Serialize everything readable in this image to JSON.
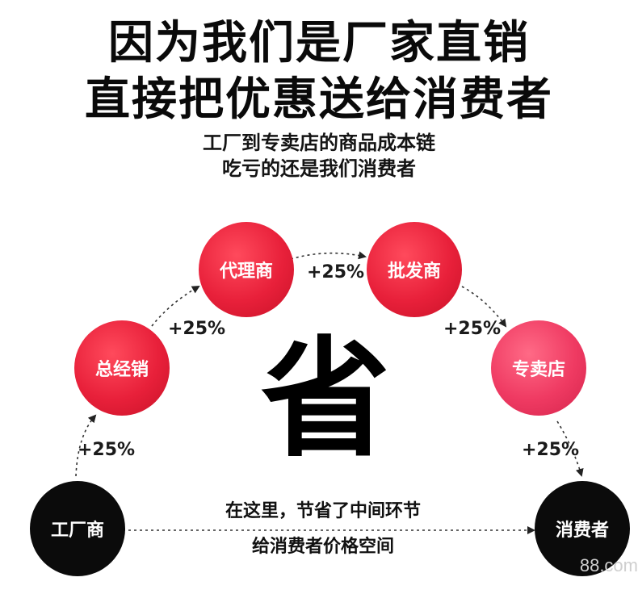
{
  "headline": {
    "line1": "因为我们是厂家直销",
    "line2": "直接把优惠送给消费者"
  },
  "subheadline": {
    "line1": "工厂到专卖店的商品成本链",
    "line2": "吃亏的还是我们消费者"
  },
  "nodes": {
    "factory": "工厂商",
    "general_distributor": "总经销",
    "agent": "代理商",
    "wholesaler": "批发商",
    "retail_store": "专卖店",
    "consumer": "消费者"
  },
  "markups": {
    "factory_to_general": "+25%",
    "general_to_agent": "+25%",
    "agent_to_wholesaler": "+25%",
    "wholesaler_to_retail": "+25%",
    "retail_to_consumer": "+25%"
  },
  "center_character": "省",
  "direct_note": {
    "line1": "在这里，节省了中间环节",
    "line2": "给消费者价格空间"
  },
  "watermark": "88.com",
  "colors": {
    "node_red": "#e8203a",
    "node_pink": "#ef3a62",
    "node_black": "#0b0b0b",
    "arrow": "#333333"
  }
}
